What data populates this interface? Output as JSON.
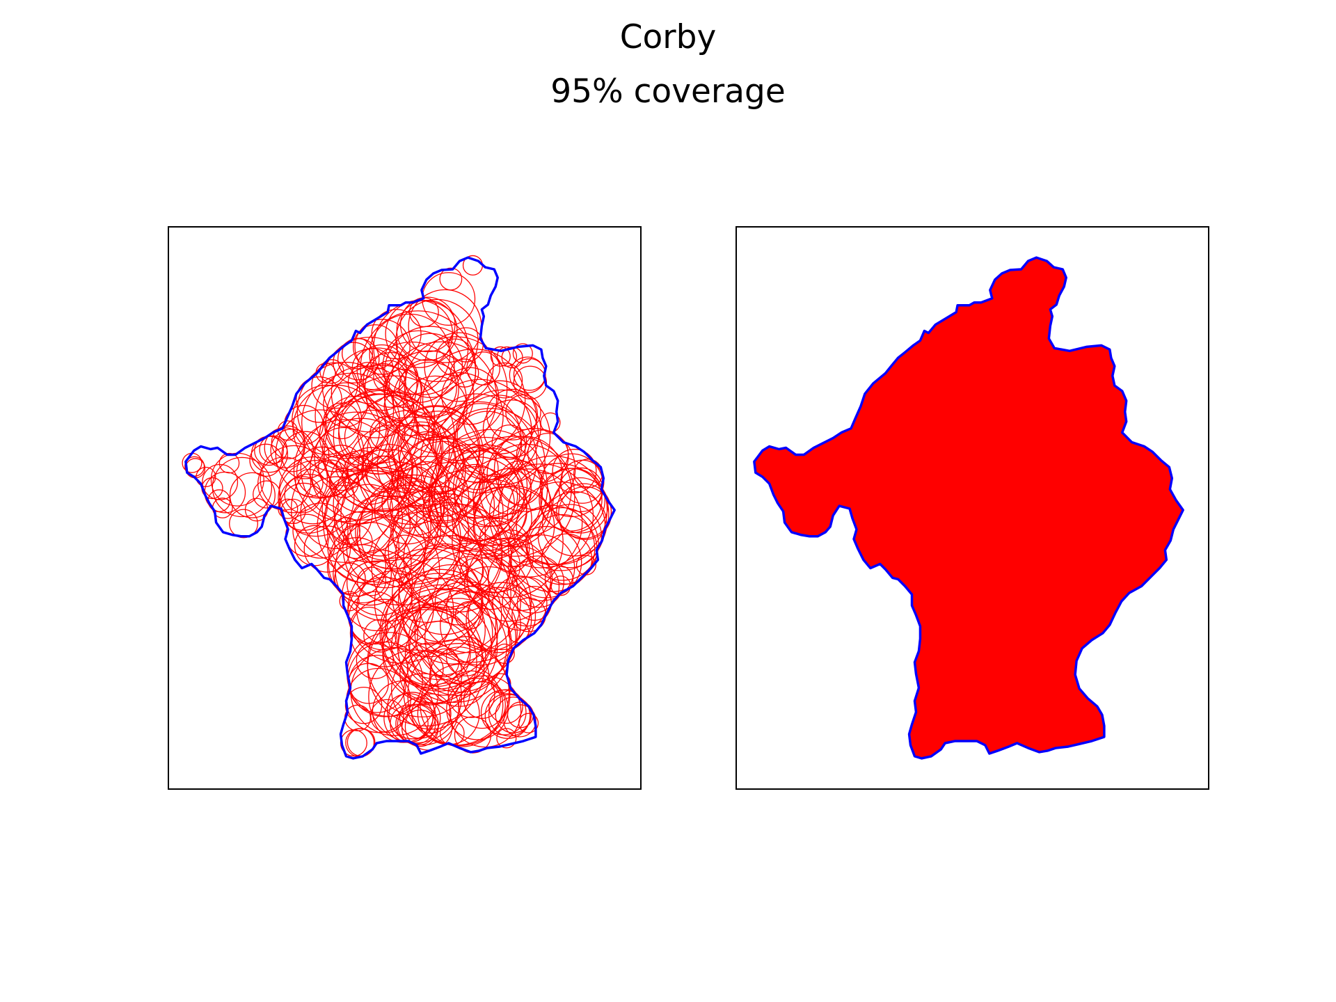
{
  "figure": {
    "title": "Corby",
    "subtitle": "95% coverage"
  },
  "map_data": {
    "region": "Corby",
    "coverage": "95%",
    "boundary_color": "#0000ff",
    "coverage_color": "#ff0000",
    "panels": [
      {
        "name": "circles",
        "style": "outline"
      },
      {
        "name": "union",
        "style": "filled"
      }
    ]
  }
}
